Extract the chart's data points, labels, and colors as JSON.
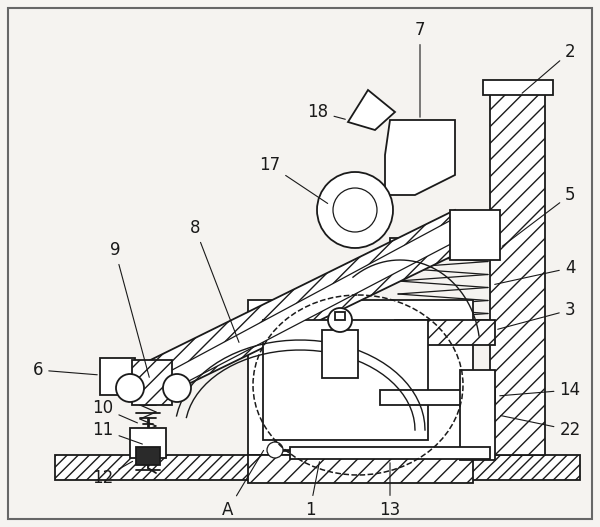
{
  "bg_color": "#f5f3f0",
  "line_color": "#1a1a1a",
  "figsize": [
    6.0,
    5.27
  ],
  "dpi": 100,
  "label_fontsize": 12
}
